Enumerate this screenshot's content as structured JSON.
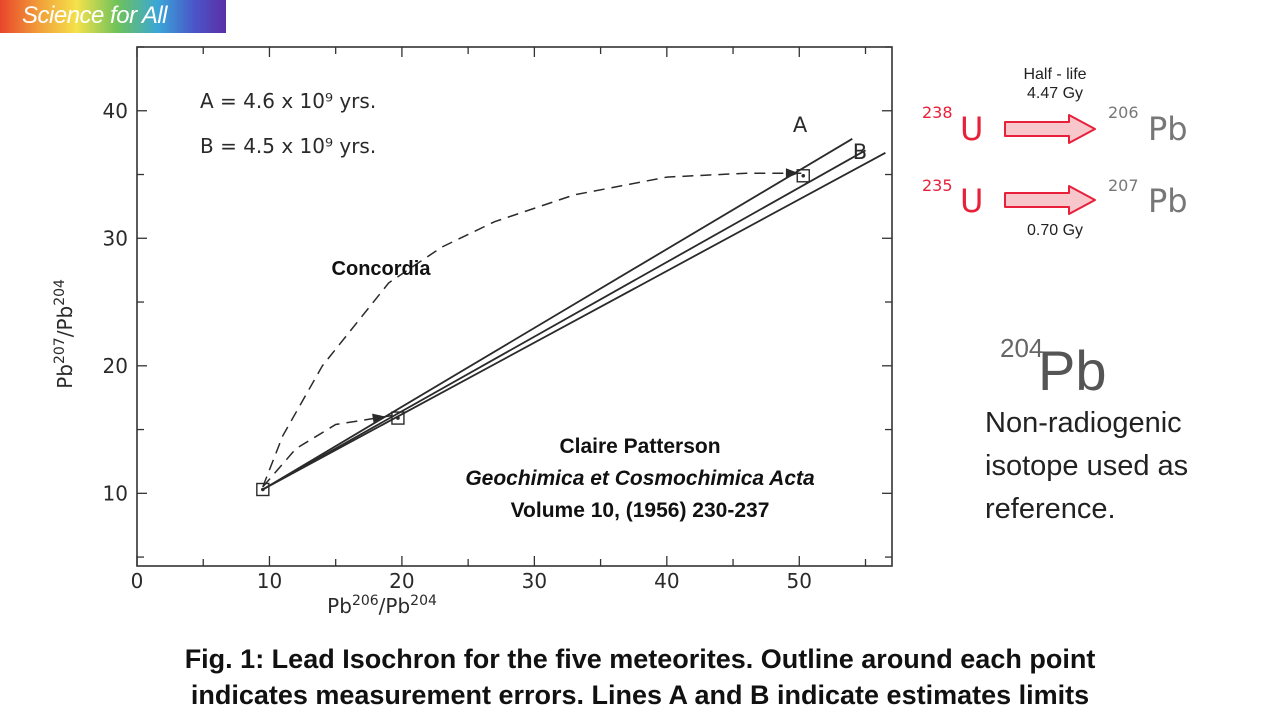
{
  "brand": {
    "label": "Science for All"
  },
  "chart_data": {
    "type": "line",
    "xlabel": "Pb206/Pb204",
    "ylabel": "Pb207/Pb204",
    "xlim": [
      0,
      57
    ],
    "ylim": [
      4.3,
      45
    ],
    "x_ticks": [
      0,
      10,
      20,
      30,
      40,
      50
    ],
    "y_ticks": [
      10,
      20,
      30,
      40
    ],
    "grid": false,
    "annotations": {
      "age_a": "A = 4.6 x 10⁹ yrs.",
      "age_b": "B = 4.5 x 10⁹ yrs.",
      "label_a": "A",
      "label_b": "B",
      "concordia": "Concordia",
      "author": "Claire Patterson",
      "journal": "Geochimica et Cosmochimica Acta",
      "volume": "Volume 10, (1956) 230-237"
    },
    "series": [
      {
        "name": "A",
        "style": "solid",
        "x": [
          9.5,
          54
        ],
        "y": [
          10.3,
          37.8
        ]
      },
      {
        "style": "solid",
        "x": [
          9.5,
          55
        ],
        "y": [
          10.3,
          36.9
        ]
      },
      {
        "name": "B",
        "style": "solid",
        "x": [
          9.5,
          56.5
        ],
        "y": [
          10.3,
          36.7
        ]
      },
      {
        "name": "Concordia",
        "style": "dashed",
        "x": [
          9.5,
          11,
          14,
          19,
          23,
          27,
          33,
          40,
          46,
          50.5
        ],
        "y": [
          10.5,
          14.5,
          20,
          26.5,
          29.3,
          31.3,
          33.4,
          34.8,
          35.1,
          35.1
        ]
      },
      {
        "style": "dashed",
        "x": [
          9.5,
          12,
          15,
          19.3
        ],
        "y": [
          10.5,
          13.5,
          15.4,
          16.1
        ]
      }
    ],
    "points": [
      {
        "x": 9.5,
        "y": 10.3
      },
      {
        "x": 19.7,
        "y": 15.9
      },
      {
        "x": 50.3,
        "y": 34.9
      }
    ]
  },
  "decay": {
    "half_life_label": "Half - life",
    "half_life_238": "4.47 Gy",
    "half_life_235": "0.70 Gy",
    "u238_mass": "238",
    "u235_mass": "235",
    "u_symbol": "U",
    "pb206_mass": "206",
    "pb207_mass": "207",
    "pb_symbol": "Pb"
  },
  "reference": {
    "mass": "204",
    "symbol": "Pb",
    "description": "Non-radiogenic isotope used as reference."
  },
  "caption": {
    "line1": "Fig. 1:  Lead Isochron for the five meteorites.  Outline around each point",
    "line2": "indicates measurement errors.  Lines A and B indicate estimates limits"
  },
  "colors": {
    "uranium": "#e8203a",
    "lead": "#777777",
    "arrow_fill": "#f7c7cc",
    "arrow_stroke": "#e8203a"
  }
}
